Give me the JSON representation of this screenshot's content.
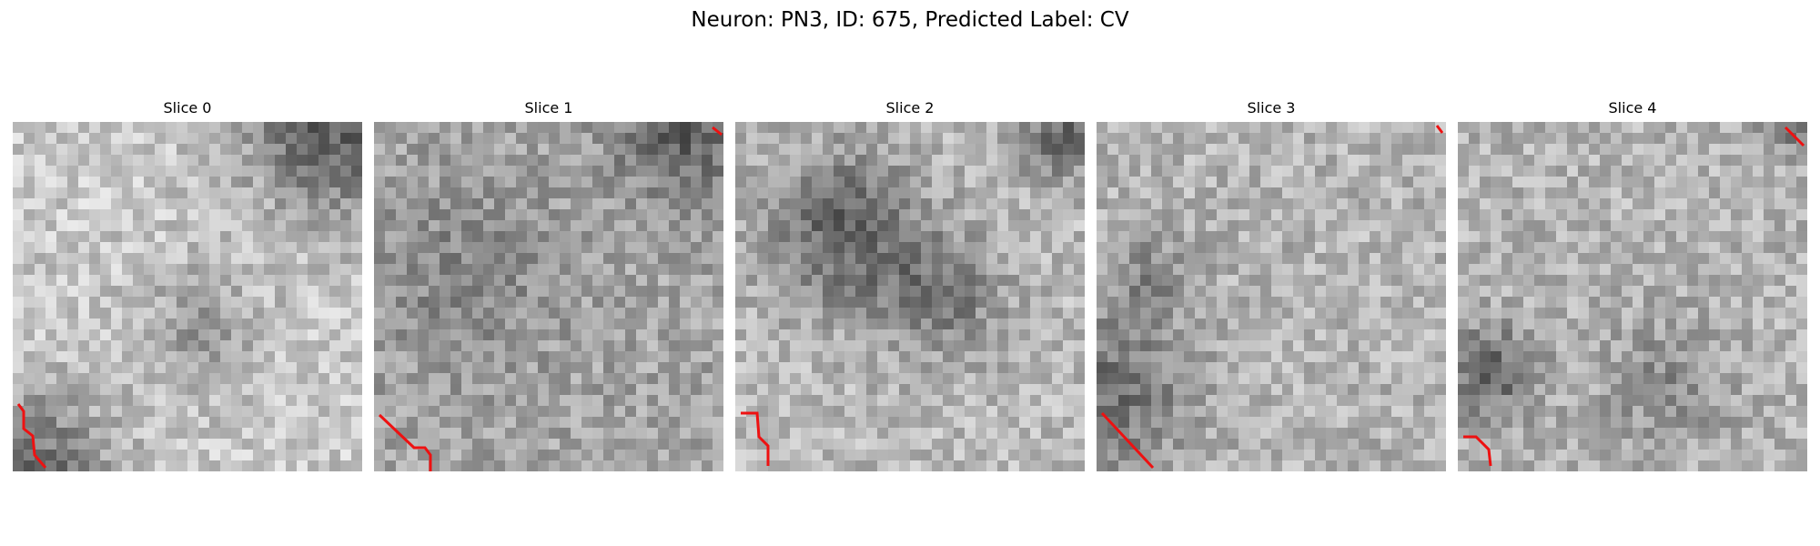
{
  "figure": {
    "title": "Neuron: PN3, ID: 675, Predicted Label: CV"
  },
  "panels": [
    {
      "title": "Slice 0",
      "seed": 11,
      "trace_color": "#ee1111"
    },
    {
      "title": "Slice 1",
      "seed": 23,
      "trace_color": "#ee1111"
    },
    {
      "title": "Slice 2",
      "seed": 37,
      "trace_color": "#ee1111"
    },
    {
      "title": "Slice 3",
      "seed": 51,
      "trace_color": "#ee1111"
    },
    {
      "title": "Slice 4",
      "seed": 67,
      "trace_color": "#ee1111"
    }
  ]
}
